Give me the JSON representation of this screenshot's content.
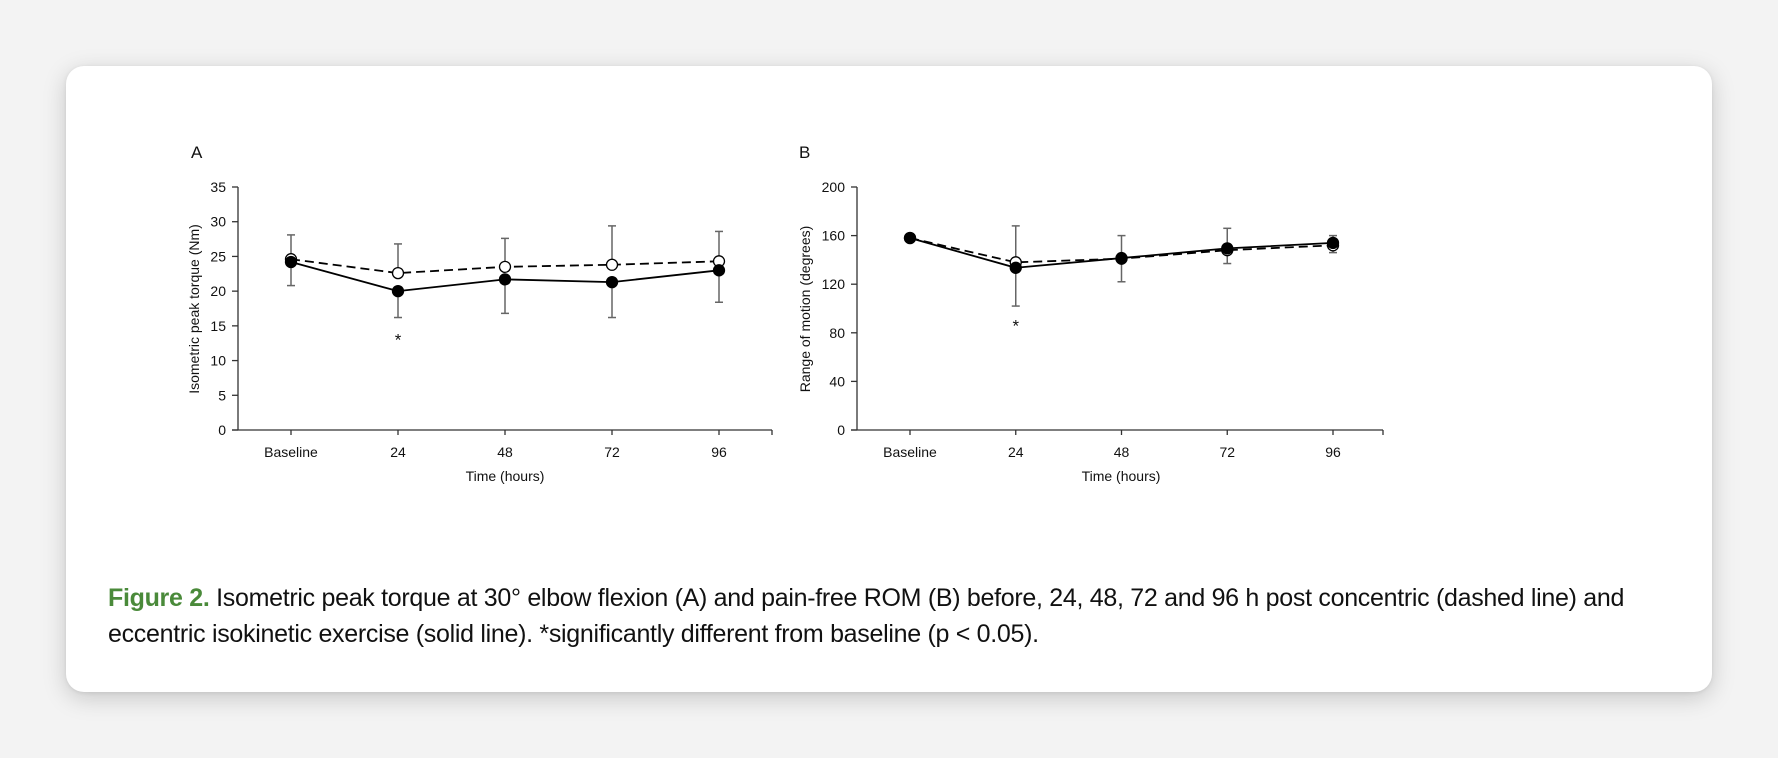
{
  "figure": {
    "caption_lead": "Figure 2.",
    "caption_text": " Isometric peak torque at 30° elbow flexion (A) and pain-free ROM (B) before, 24, 48, 72 and 96 h post concentric (dashed line) and eccentric isokinetic exercise (solid line). *significantly different from baseline (p < 0.05).",
    "caption_lead_color": "#4a8a3a"
  },
  "chart_data": [
    {
      "panel": "A",
      "type": "line",
      "title": "",
      "xlabel": "Time (hours)",
      "ylabel": "Isometric peak torque (Nm)",
      "categories": [
        "Baseline",
        "24",
        "48",
        "72",
        "96"
      ],
      "ylim": [
        0,
        35
      ],
      "yticks": [
        0,
        5,
        10,
        15,
        20,
        25,
        30,
        35
      ],
      "grid": false,
      "series": [
        {
          "name": "Concentric",
          "style": "dashed",
          "marker": "open-circle",
          "values": [
            24.6,
            22.6,
            23.5,
            23.8,
            24.3
          ],
          "error_upper": [
            28.1,
            26.8,
            27.6,
            29.4,
            28.6
          ]
        },
        {
          "name": "Eccentric",
          "style": "solid",
          "marker": "filled-circle",
          "values": [
            24.2,
            20.0,
            21.7,
            21.3,
            23.0
          ],
          "error_lower": [
            20.8,
            16.2,
            16.8,
            16.2,
            18.4
          ]
        }
      ],
      "annotations": [
        {
          "category": "24",
          "text": "*",
          "y": 13.0
        }
      ]
    },
    {
      "panel": "B",
      "type": "line",
      "title": "",
      "xlabel": "Time (hours)",
      "ylabel": "Range of motion (degrees)",
      "categories": [
        "Baseline",
        "24",
        "48",
        "72",
        "96"
      ],
      "ylim": [
        0,
        200
      ],
      "yticks": [
        0,
        40,
        80,
        120,
        160,
        200
      ],
      "grid": false,
      "series": [
        {
          "name": "Concentric",
          "style": "dashed",
          "marker": "open-circle",
          "values": [
            158,
            138,
            141,
            148,
            152
          ],
          "error_upper": [
            158,
            168,
            160,
            166,
            160
          ]
        },
        {
          "name": "Eccentric",
          "style": "solid",
          "marker": "filled-circle",
          "values": [
            158,
            133.5,
            141.5,
            149.5,
            154
          ],
          "error_lower": [
            158,
            102,
            122,
            137,
            146
          ]
        }
      ],
      "annotations": [
        {
          "category": "24",
          "text": "*",
          "y": 86
        }
      ]
    }
  ]
}
